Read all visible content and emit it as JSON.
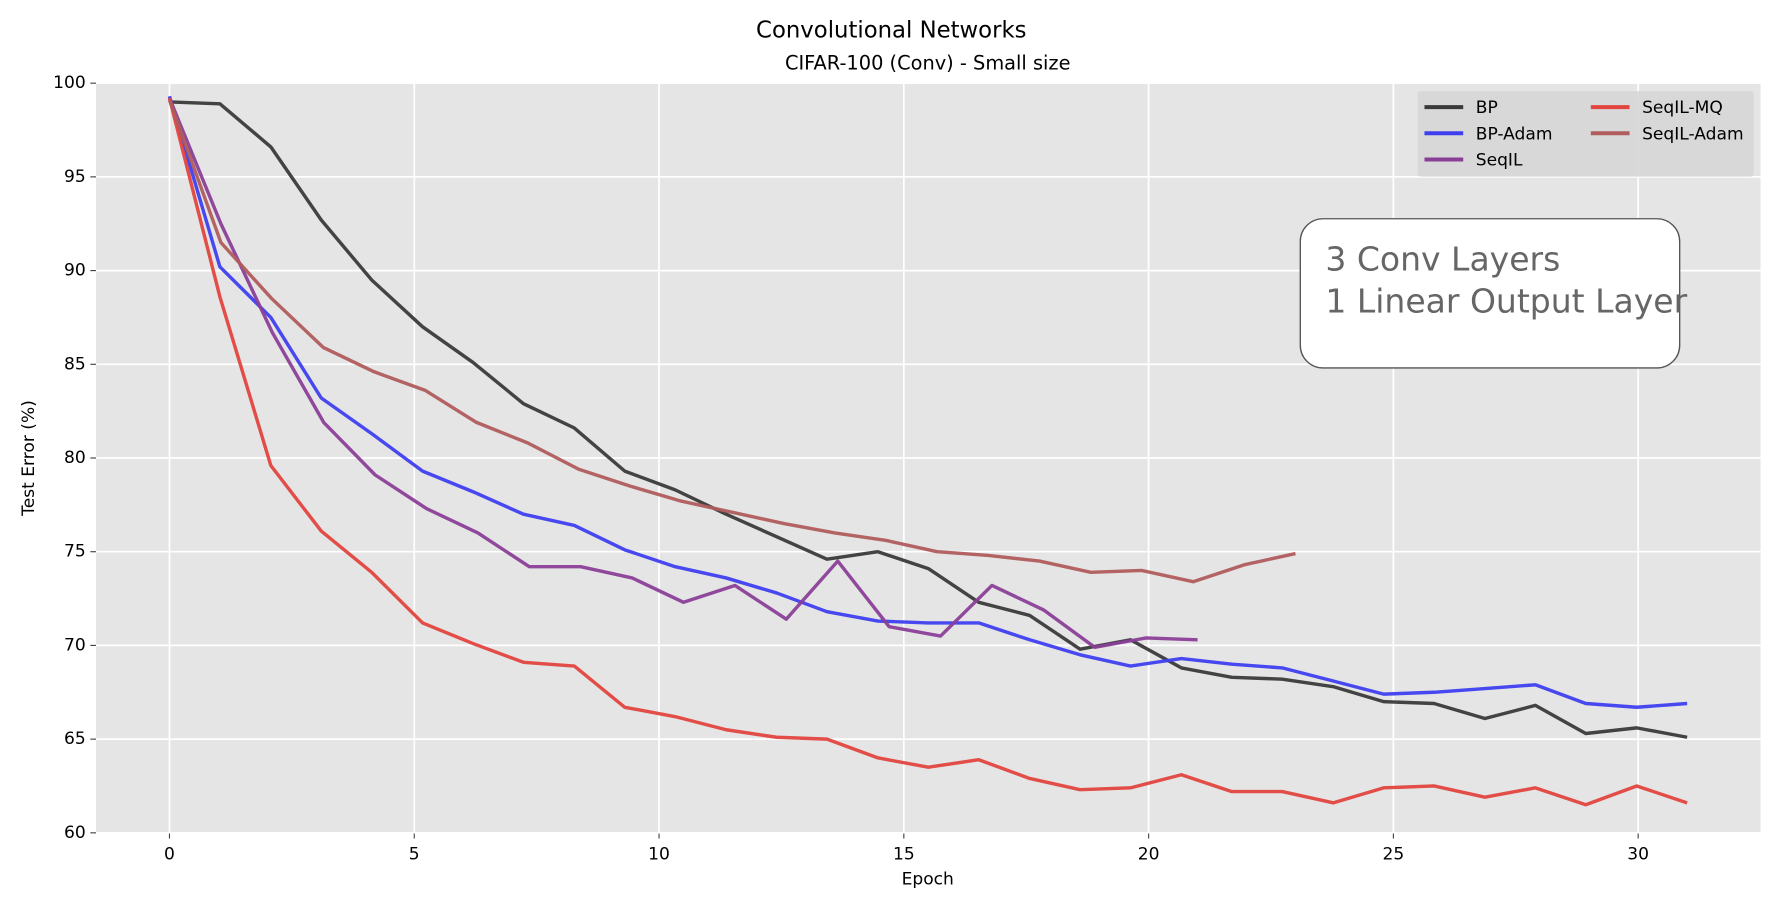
{
  "chart_data": {
    "type": "line",
    "title": "Convolutional Networks",
    "subtitle": "CIFAR-100 (Conv) - Small size",
    "xlabel": "Epoch",
    "ylabel": "Test Error (%)",
    "annotation": [
      "3 Conv Layers",
      "1 Linear Output Layer"
    ],
    "xlim": [
      -1.5,
      32.5
    ],
    "xticks": [
      0,
      5,
      10,
      15,
      20,
      25,
      30
    ],
    "ylim": [
      60,
      100
    ],
    "yticks": [
      60,
      65,
      70,
      75,
      80,
      85,
      90,
      95,
      100
    ],
    "grid": true,
    "legend": "upper right",
    "series": [
      {
        "name": "BP",
        "color": "#3a3a3a",
        "x": [
          0,
          1.03,
          2.07,
          3.1,
          4.13,
          5.17,
          6.2,
          7.23,
          8.27,
          9.3,
          10.33,
          11.37,
          12.4,
          13.43,
          14.47,
          15.5,
          16.53,
          17.57,
          18.6,
          19.63,
          20.67,
          21.7,
          22.73,
          23.77,
          24.8,
          25.83,
          26.87,
          27.9,
          28.93,
          29.97,
          31
        ],
        "values": [
          99.0,
          98.9,
          96.6,
          92.7,
          89.5,
          87.0,
          85.1,
          82.9,
          81.6,
          79.3,
          78.3,
          77.0,
          75.8,
          74.6,
          75.0,
          74.1,
          72.3,
          71.6,
          69.8,
          70.3,
          68.8,
          68.3,
          68.2,
          67.8,
          67.0,
          66.9,
          66.1,
          66.8,
          65.3,
          65.6,
          65.1
        ]
      },
      {
        "name": "BP-Adam",
        "color": "#3f3ff0",
        "x": [
          0,
          1.03,
          2.07,
          3.1,
          4.13,
          5.17,
          6.2,
          7.23,
          8.27,
          9.3,
          10.33,
          11.37,
          12.4,
          13.43,
          14.47,
          15.5,
          16.53,
          17.57,
          18.6,
          19.63,
          20.67,
          21.7,
          22.73,
          23.77,
          24.8,
          25.83,
          26.87,
          27.9,
          28.93,
          29.97,
          31
        ],
        "values": [
          99.3,
          90.2,
          87.5,
          83.2,
          81.3,
          79.3,
          78.2,
          77.0,
          76.4,
          75.1,
          74.2,
          73.6,
          72.8,
          71.8,
          71.3,
          71.2,
          71.2,
          70.3,
          69.5,
          68.9,
          69.3,
          69.0,
          68.8,
          68.1,
          67.4,
          67.5,
          67.7,
          67.9,
          66.9,
          66.7,
          66.9
        ]
      },
      {
        "name": "SeqIL",
        "color": "#8a3f97",
        "x": [
          0,
          1.05,
          2.1,
          3.15,
          4.2,
          5.25,
          6.3,
          7.35,
          8.4,
          9.45,
          10.5,
          11.55,
          12.6,
          13.65,
          14.7,
          15.75,
          16.8,
          17.85,
          18.9,
          19.95,
          21
        ],
        "values": [
          99.2,
          92.5,
          86.7,
          81.9,
          79.1,
          77.3,
          76.0,
          74.2,
          74.2,
          73.6,
          72.3,
          73.2,
          71.4,
          74.5,
          71.0,
          70.5,
          73.2,
          71.9,
          69.9,
          70.4,
          70.3
        ]
      },
      {
        "name": "SeqIL-MQ",
        "color": "#e2453f",
        "x": [
          0,
          1.03,
          2.07,
          3.1,
          4.13,
          5.17,
          6.2,
          7.23,
          8.27,
          9.3,
          10.33,
          11.37,
          12.4,
          13.43,
          14.47,
          15.5,
          16.53,
          17.57,
          18.6,
          19.63,
          20.67,
          21.7,
          22.73,
          23.77,
          24.8,
          25.83,
          26.87,
          27.9,
          28.93,
          29.97,
          31
        ],
        "values": [
          99.2,
          88.6,
          79.6,
          76.1,
          73.9,
          71.2,
          70.1,
          69.1,
          68.9,
          66.7,
          66.2,
          65.5,
          65.1,
          65.0,
          64.0,
          63.5,
          63.9,
          62.9,
          62.3,
          62.4,
          63.1,
          62.2,
          62.2,
          61.6,
          62.4,
          62.5,
          61.9,
          62.4,
          61.5,
          62.5,
          61.6
        ]
      },
      {
        "name": "SeqIL-Adam",
        "color": "#b05c5c",
        "x": [
          0,
          1.05,
          2.09,
          3.14,
          4.18,
          5.23,
          6.27,
          7.32,
          8.36,
          9.41,
          10.45,
          11.5,
          12.55,
          13.59,
          14.64,
          15.68,
          16.73,
          17.77,
          18.82,
          19.86,
          20.91,
          21.95,
          23
        ],
        "values": [
          99.1,
          91.5,
          88.5,
          85.9,
          84.6,
          83.6,
          81.9,
          80.8,
          79.4,
          78.5,
          77.7,
          77.1,
          76.5,
          76.0,
          75.6,
          75.0,
          74.8,
          74.5,
          73.9,
          74.0,
          73.4,
          74.3,
          74.9
        ]
      }
    ]
  }
}
